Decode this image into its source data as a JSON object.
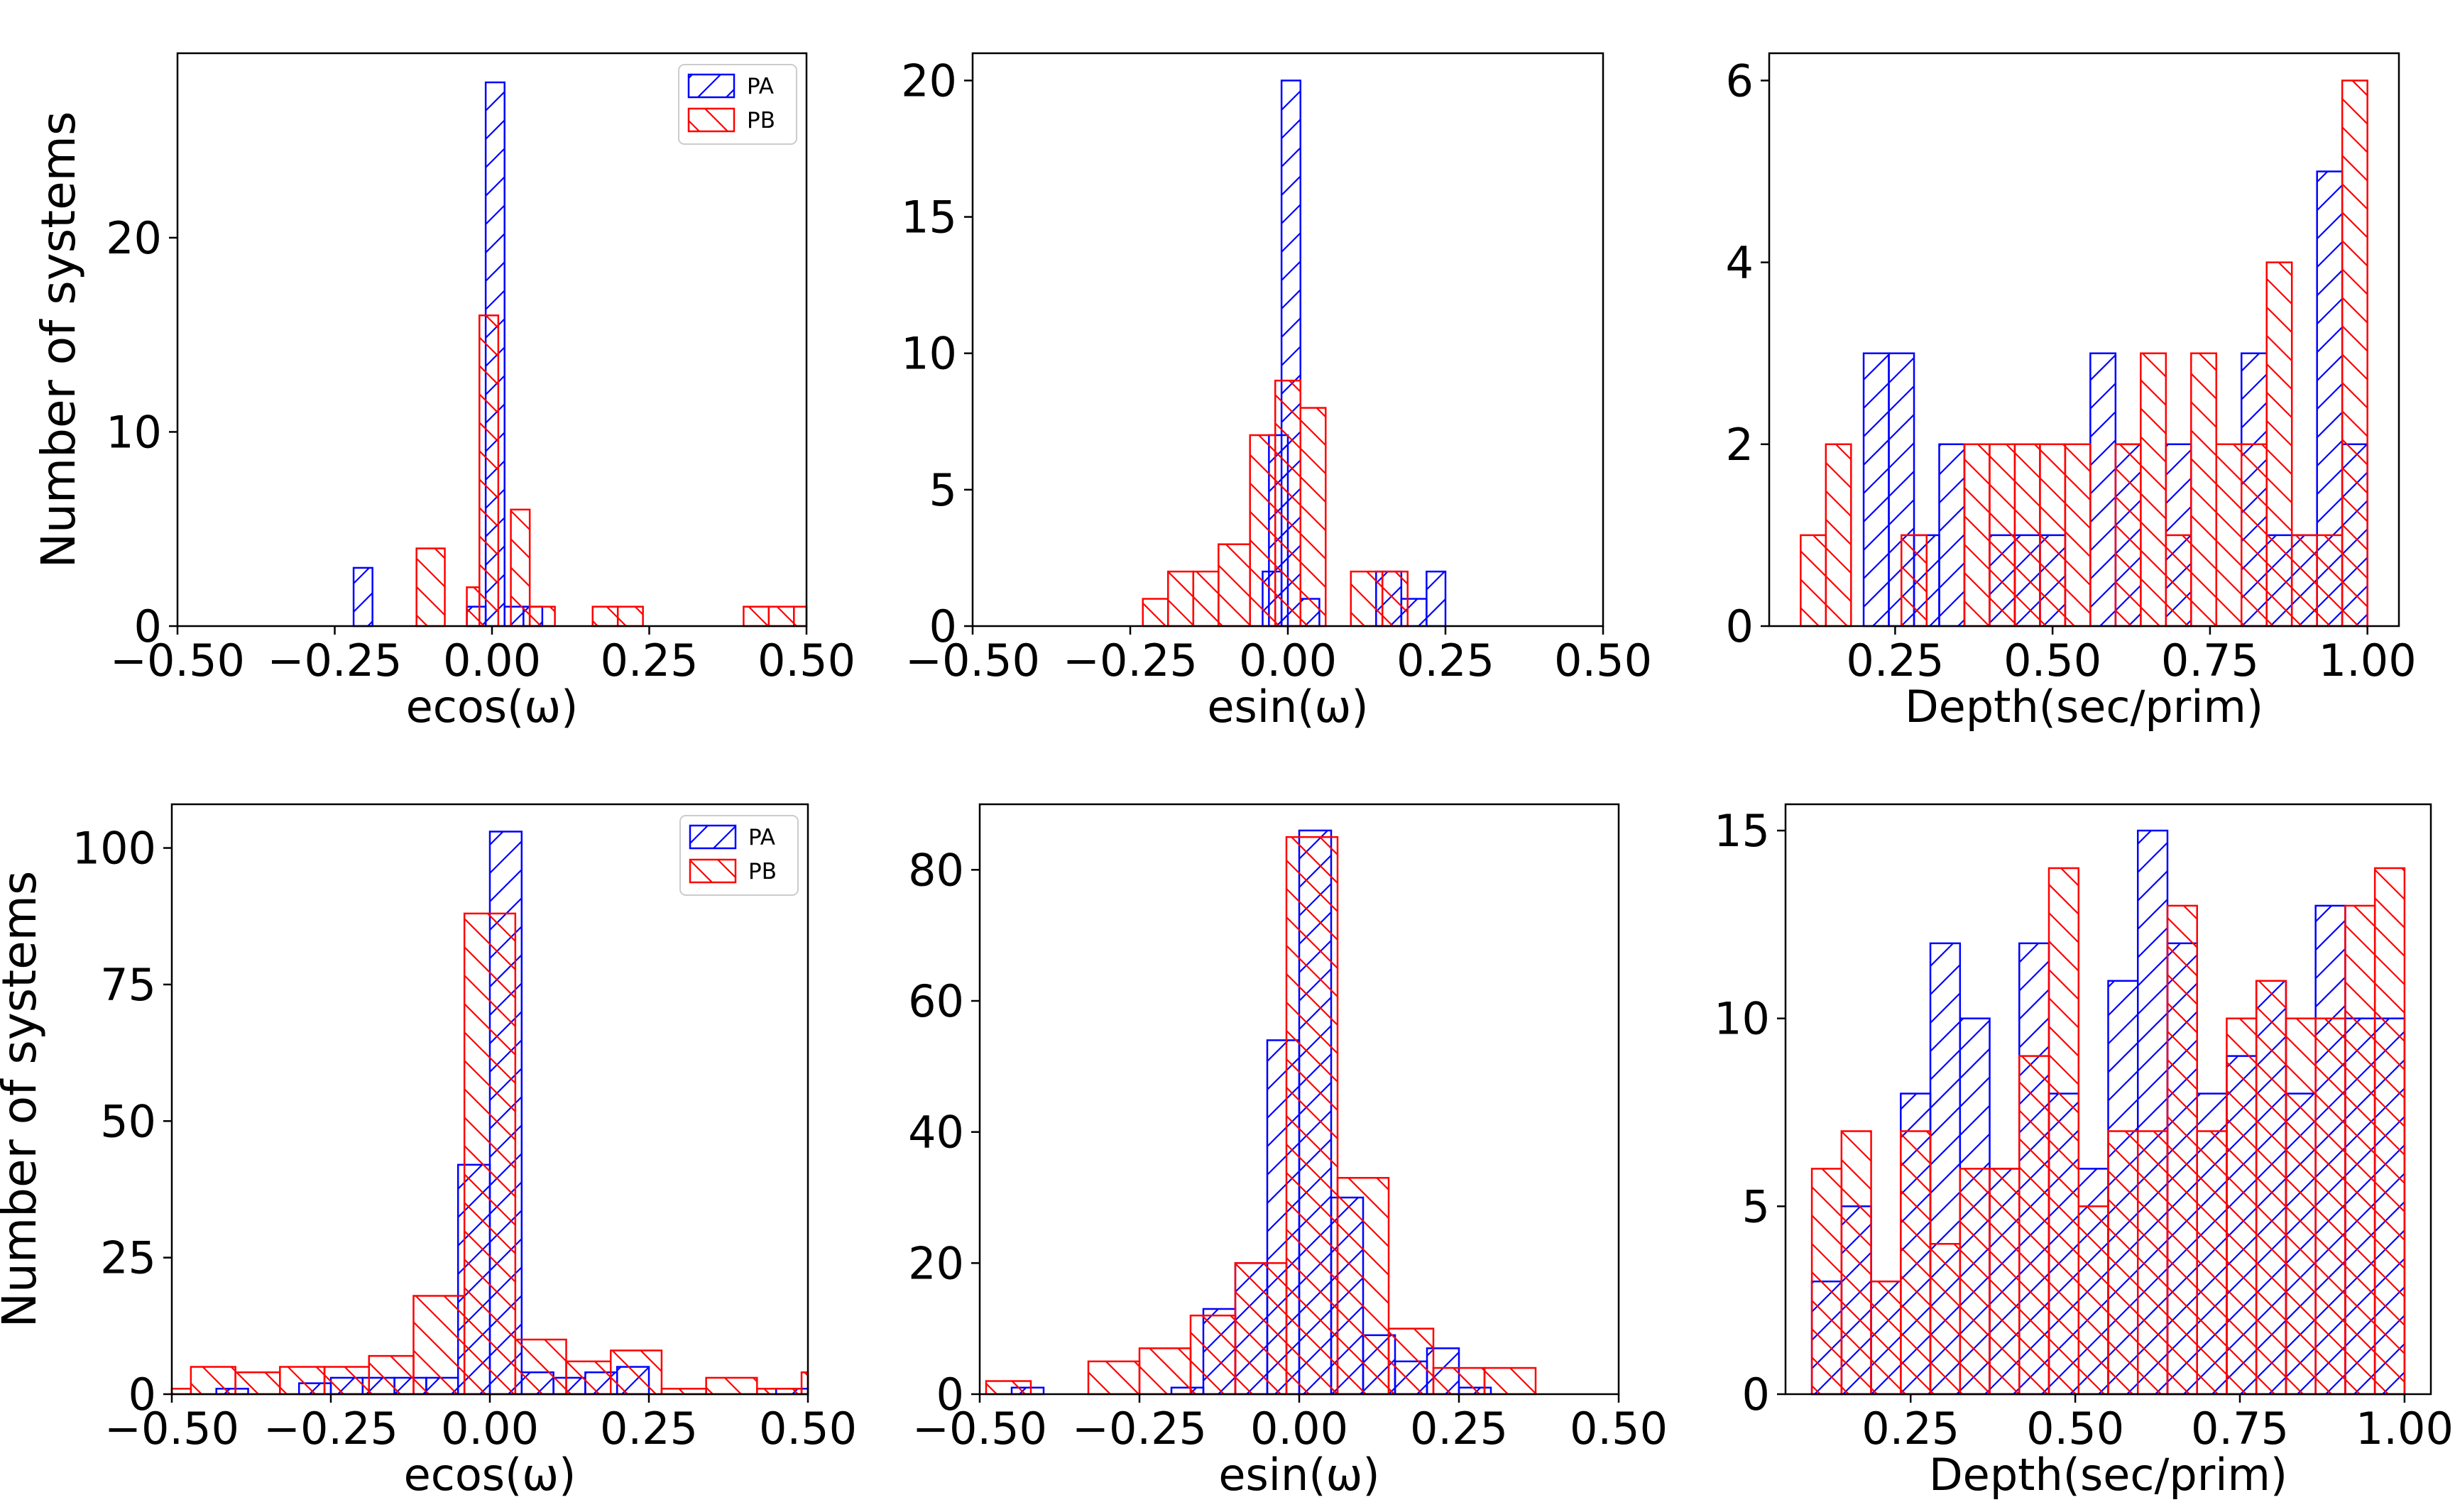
{
  "figure_ylabel": "Number of systems",
  "legend_labels": [
    "PA",
    "PB"
  ],
  "colors": {
    "PA": "#0000ff",
    "PB": "#ff0000",
    "axis": "#000000"
  },
  "chart_data": [
    {
      "type": "bar",
      "xlabel": "ecos(ω)",
      "xlim": [
        -0.5,
        0.5
      ],
      "ylim": [
        0,
        29.5
      ],
      "xticks": [
        -0.5,
        -0.25,
        0.0,
        0.25,
        0.5
      ],
      "xtick_labels": [
        "−0.50",
        "−0.25",
        "0.00",
        "0.25",
        "0.50"
      ],
      "yticks": [
        0,
        10,
        20
      ],
      "ytick_labels": [
        "0",
        "10",
        "20"
      ],
      "show_ylabel": true,
      "show_legend": true,
      "series": [
        {
          "name": "PA",
          "bins": [
            [
              -0.22,
              -0.19,
              3
            ],
            [
              -0.04,
              -0.01,
              1
            ],
            [
              -0.01,
              0.02,
              28
            ],
            [
              0.02,
              0.05,
              1
            ],
            [
              0.05,
              0.08,
              1
            ]
          ]
        },
        {
          "name": "PB",
          "bins": [
            [
              -0.12,
              -0.075,
              4
            ],
            [
              -0.04,
              -0.02,
              2
            ],
            [
              -0.02,
              0.01,
              16
            ],
            [
              0.03,
              0.06,
              6
            ],
            [
              0.06,
              0.1,
              1
            ],
            [
              0.16,
              0.2,
              1
            ],
            [
              0.2,
              0.24,
              1
            ],
            [
              0.4,
              0.44,
              1
            ],
            [
              0.44,
              0.48,
              1
            ],
            [
              0.48,
              0.5,
              1
            ]
          ]
        }
      ]
    },
    {
      "type": "bar",
      "xlabel": "esin(ω)",
      "xlim": [
        -0.5,
        0.5
      ],
      "ylim": [
        0,
        21
      ],
      "xticks": [
        -0.5,
        -0.25,
        0.0,
        0.25,
        0.5
      ],
      "xtick_labels": [
        "−0.50",
        "−0.25",
        "0.00",
        "0.25",
        "0.50"
      ],
      "yticks": [
        0,
        5,
        10,
        15,
        20
      ],
      "ytick_labels": [
        "0",
        "5",
        "10",
        "15",
        "20"
      ],
      "show_ylabel": false,
      "show_legend": false,
      "series": [
        {
          "name": "PA",
          "bins": [
            [
              -0.04,
              -0.01,
              2
            ],
            [
              -0.03,
              0.0,
              7
            ],
            [
              -0.01,
              0.02,
              20
            ],
            [
              0.02,
              0.05,
              1
            ],
            [
              0.14,
              0.18,
              2
            ],
            [
              0.18,
              0.22,
              1
            ],
            [
              0.22,
              0.25,
              2
            ]
          ]
        },
        {
          "name": "PB",
          "bins": [
            [
              -0.23,
              -0.19,
              1
            ],
            [
              -0.19,
              -0.15,
              2
            ],
            [
              -0.15,
              -0.11,
              2
            ],
            [
              -0.11,
              -0.06,
              3
            ],
            [
              -0.06,
              -0.02,
              7
            ],
            [
              -0.02,
              0.02,
              9
            ],
            [
              0.02,
              0.06,
              8
            ],
            [
              0.1,
              0.15,
              2
            ],
            [
              0.15,
              0.19,
              2
            ]
          ]
        }
      ]
    },
    {
      "type": "bar",
      "xlabel": "Depth(sec/prim)",
      "xlim": [
        0.05,
        1.05
      ],
      "ylim": [
        0,
        6.3
      ],
      "xticks": [
        0.25,
        0.5,
        0.75,
        1.0
      ],
      "xtick_labels": [
        "0.25",
        "0.50",
        "0.75",
        "1.00"
      ],
      "yticks": [
        0,
        2,
        4,
        6
      ],
      "ytick_labels": [
        "0",
        "2",
        "4",
        "6"
      ],
      "show_ylabel": false,
      "show_legend": false,
      "series": [
        {
          "name": "PA",
          "bins": [
            [
              0.2,
              0.24,
              3
            ],
            [
              0.24,
              0.28,
              3
            ],
            [
              0.28,
              0.32,
              1
            ],
            [
              0.32,
              0.36,
              2
            ],
            [
              0.4,
              0.44,
              1
            ],
            [
              0.44,
              0.48,
              1
            ],
            [
              0.48,
              0.52,
              1
            ],
            [
              0.56,
              0.6,
              3
            ],
            [
              0.6,
              0.64,
              2
            ],
            [
              0.68,
              0.72,
              2
            ],
            [
              0.8,
              0.84,
              3
            ],
            [
              0.84,
              0.88,
              1
            ],
            [
              0.88,
              0.92,
              1
            ],
            [
              0.92,
              0.96,
              5
            ],
            [
              0.96,
              1.0,
              2
            ]
          ]
        },
        {
          "name": "PB",
          "bins": [
            [
              0.1,
              0.14,
              1
            ],
            [
              0.14,
              0.18,
              2
            ],
            [
              0.26,
              0.3,
              1
            ],
            [
              0.36,
              0.4,
              2
            ],
            [
              0.4,
              0.44,
              2
            ],
            [
              0.44,
              0.48,
              2
            ],
            [
              0.48,
              0.52,
              2
            ],
            [
              0.52,
              0.56,
              2
            ],
            [
              0.6,
              0.64,
              2
            ],
            [
              0.64,
              0.68,
              3
            ],
            [
              0.68,
              0.72,
              1
            ],
            [
              0.72,
              0.76,
              3
            ],
            [
              0.76,
              0.8,
              2
            ],
            [
              0.8,
              0.84,
              2
            ],
            [
              0.84,
              0.88,
              4
            ],
            [
              0.88,
              0.92,
              1
            ],
            [
              0.92,
              0.96,
              1
            ],
            [
              0.96,
              1.0,
              6
            ]
          ]
        }
      ]
    },
    {
      "type": "bar",
      "xlabel": "ecos(ω)",
      "xlim": [
        -0.5,
        0.5
      ],
      "ylim": [
        0,
        108
      ],
      "xticks": [
        -0.5,
        -0.25,
        0.0,
        0.25,
        0.5
      ],
      "xtick_labels": [
        "−0.50",
        "−0.25",
        "0.00",
        "0.25",
        "0.50"
      ],
      "yticks": [
        0,
        25,
        50,
        75,
        100
      ],
      "ytick_labels": [
        "0",
        "25",
        "50",
        "75",
        "100"
      ],
      "show_ylabel": true,
      "show_legend": true,
      "series": [
        {
          "name": "PA",
          "bins": [
            [
              -0.43,
              -0.38,
              1
            ],
            [
              -0.3,
              -0.25,
              2
            ],
            [
              -0.25,
              -0.2,
              3
            ],
            [
              -0.2,
              -0.15,
              3
            ],
            [
              -0.15,
              -0.1,
              3
            ],
            [
              -0.1,
              -0.05,
              3
            ],
            [
              -0.05,
              0.0,
              42
            ],
            [
              0.0,
              0.05,
              103
            ],
            [
              0.05,
              0.1,
              4
            ],
            [
              0.1,
              0.15,
              3
            ],
            [
              0.15,
              0.2,
              4
            ],
            [
              0.2,
              0.25,
              5
            ],
            [
              0.45,
              0.5,
              1
            ]
          ]
        },
        {
          "name": "PB",
          "bins": [
            [
              -0.5,
              -0.47,
              1
            ],
            [
              -0.47,
              -0.4,
              5
            ],
            [
              -0.4,
              -0.33,
              4
            ],
            [
              -0.33,
              -0.26,
              5
            ],
            [
              -0.26,
              -0.19,
              5
            ],
            [
              -0.19,
              -0.12,
              7
            ],
            [
              -0.12,
              -0.04,
              18
            ],
            [
              -0.04,
              0.04,
              88
            ],
            [
              0.04,
              0.12,
              10
            ],
            [
              0.12,
              0.19,
              6
            ],
            [
              0.19,
              0.27,
              8
            ],
            [
              0.27,
              0.34,
              1
            ],
            [
              0.34,
              0.42,
              3
            ],
            [
              0.42,
              0.49,
              1
            ],
            [
              0.49,
              0.5,
              4
            ]
          ]
        }
      ]
    },
    {
      "type": "bar",
      "xlabel": "esin(ω)",
      "xlim": [
        -0.5,
        0.5
      ],
      "ylim": [
        0,
        90
      ],
      "xticks": [
        -0.5,
        -0.25,
        0.0,
        0.25,
        0.5
      ],
      "xtick_labels": [
        "−0.50",
        "−0.25",
        "0.00",
        "0.25",
        "0.50"
      ],
      "yticks": [
        0,
        20,
        40,
        60,
        80
      ],
      "ytick_labels": [
        "0",
        "20",
        "40",
        "60",
        "80"
      ],
      "show_ylabel": false,
      "show_legend": false,
      "series": [
        {
          "name": "PA",
          "bins": [
            [
              -0.45,
              -0.4,
              1
            ],
            [
              -0.2,
              -0.15,
              1
            ],
            [
              -0.15,
              -0.1,
              13
            ],
            [
              -0.1,
              -0.05,
              20
            ],
            [
              -0.05,
              0.0,
              54
            ],
            [
              0.0,
              0.05,
              86
            ],
            [
              0.05,
              0.1,
              30
            ],
            [
              0.1,
              0.15,
              9
            ],
            [
              0.15,
              0.2,
              5
            ],
            [
              0.2,
              0.25,
              7
            ],
            [
              0.25,
              0.3,
              1
            ]
          ]
        },
        {
          "name": "PB",
          "bins": [
            [
              -0.49,
              -0.42,
              2
            ],
            [
              -0.33,
              -0.25,
              5
            ],
            [
              -0.25,
              -0.17,
              7
            ],
            [
              -0.17,
              -0.1,
              12
            ],
            [
              -0.1,
              -0.02,
              20
            ],
            [
              -0.02,
              0.06,
              85
            ],
            [
              0.06,
              0.14,
              33
            ],
            [
              0.14,
              0.21,
              10
            ],
            [
              0.21,
              0.29,
              4
            ],
            [
              0.29,
              0.37,
              4
            ]
          ]
        }
      ]
    },
    {
      "type": "bar",
      "xlabel": "Depth(sec/prim)",
      "xlim": [
        0.06,
        1.04
      ],
      "ylim": [
        0,
        15.7
      ],
      "xticks": [
        0.25,
        0.5,
        0.75,
        1.0
      ],
      "xtick_labels": [
        "0.25",
        "0.50",
        "0.75",
        "1.00"
      ],
      "yticks": [
        0,
        5,
        10,
        15
      ],
      "ytick_labels": [
        "0",
        "5",
        "10",
        "15"
      ],
      "show_ylabel": false,
      "show_legend": false,
      "series": [
        {
          "name": "PA",
          "bins": [
            [
              0.1,
              0.145,
              3
            ],
            [
              0.145,
              0.19,
              5
            ],
            [
              0.19,
              0.235,
              3
            ],
            [
              0.235,
              0.28,
              8
            ],
            [
              0.28,
              0.325,
              12
            ],
            [
              0.325,
              0.37,
              10
            ],
            [
              0.37,
              0.415,
              6
            ],
            [
              0.415,
              0.46,
              12
            ],
            [
              0.46,
              0.505,
              8
            ],
            [
              0.505,
              0.55,
              6
            ],
            [
              0.55,
              0.595,
              11
            ],
            [
              0.595,
              0.64,
              15
            ],
            [
              0.64,
              0.685,
              12
            ],
            [
              0.685,
              0.73,
              8
            ],
            [
              0.73,
              0.775,
              9
            ],
            [
              0.775,
              0.82,
              11
            ],
            [
              0.82,
              0.865,
              8
            ],
            [
              0.865,
              0.91,
              13
            ],
            [
              0.91,
              0.955,
              10
            ],
            [
              0.955,
              1.0,
              10
            ]
          ]
        },
        {
          "name": "PB",
          "bins": [
            [
              0.1,
              0.145,
              6
            ],
            [
              0.145,
              0.19,
              7
            ],
            [
              0.19,
              0.235,
              3
            ],
            [
              0.235,
              0.28,
              7
            ],
            [
              0.28,
              0.325,
              4
            ],
            [
              0.325,
              0.37,
              6
            ],
            [
              0.37,
              0.415,
              6
            ],
            [
              0.415,
              0.46,
              9
            ],
            [
              0.46,
              0.505,
              14
            ],
            [
              0.505,
              0.55,
              5
            ],
            [
              0.55,
              0.595,
              7
            ],
            [
              0.595,
              0.64,
              7
            ],
            [
              0.64,
              0.685,
              13
            ],
            [
              0.685,
              0.73,
              7
            ],
            [
              0.73,
              0.775,
              10
            ],
            [
              0.775,
              0.82,
              11
            ],
            [
              0.82,
              0.865,
              10
            ],
            [
              0.865,
              0.91,
              10
            ],
            [
              0.91,
              0.955,
              13
            ],
            [
              0.955,
              1.0,
              14
            ]
          ]
        }
      ]
    }
  ]
}
